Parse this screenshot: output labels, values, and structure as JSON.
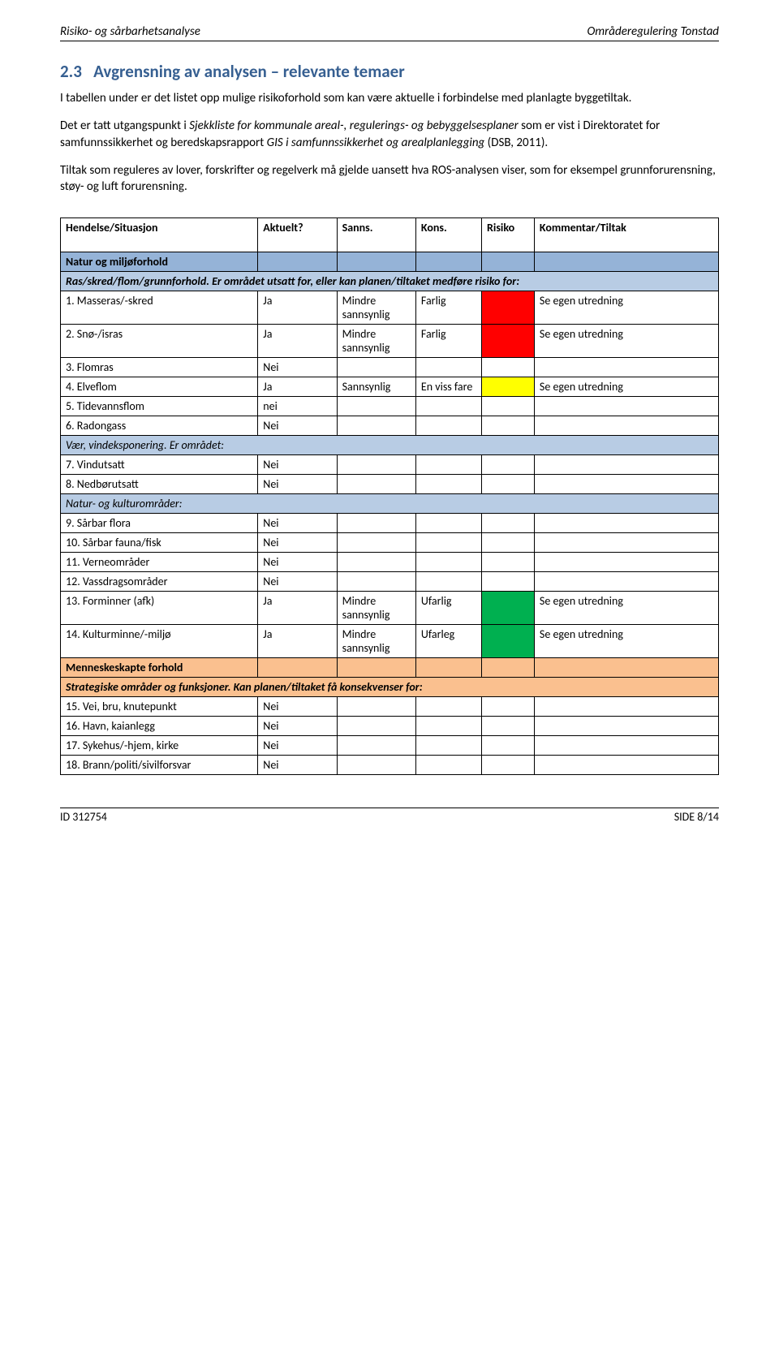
{
  "header": {
    "left": "Risiko- og sårbarhetsanalyse",
    "right": "Områderegulering Tonstad"
  },
  "section": {
    "number": "2.3",
    "title": "Avgrensning av analysen – relevante temaer"
  },
  "paragraphs": {
    "p1": "I tabellen under er det listet opp mulige risikoforhold som kan være aktuelle i forbindelse med planlagte byggetiltak.",
    "p2a": "Det er tatt utgangspunkt i ",
    "p2b": "Sjekkliste for kommunale areal-, regulerings- og bebyggelsesplaner",
    "p2c": " som er vist i Direktoratet for samfunnssikkerhet og beredskapsrapport ",
    "p2d": "GIS i samfunnssikkerhet og arealplanlegging",
    "p2e": " (DSB, 2011).",
    "p3": "Tiltak som reguleres av lover, forskrifter og regelverk må gjelde uansett hva ROS-analysen viser, som for eksempel grunnforurensning, støy- og luft forurensning."
  },
  "columns": {
    "c1": "Hendelse/Situasjon",
    "c2": "Aktuelt?",
    "c3": "Sanns.",
    "c4": "Kons.",
    "c5": "Risiko",
    "c6": "Kommentar/Tiltak"
  },
  "section_headers": {
    "natur": "Natur og miljøforhold",
    "ras": "Ras/skred/flom/grunnforhold. Er området utsatt for, eller kan planen/tiltaket medføre risiko for:",
    "vaer": "Vær, vindeksponering. Er området:",
    "naturkultur": "Natur- og kulturområder:",
    "menneske": "Menneskeskapte forhold",
    "strategiske": "Strategiske områder og funksjoner. Kan planen/tiltaket få konsekvenser for:"
  },
  "rows": {
    "r1": {
      "label": "1. Masseras/-skred",
      "akt": "Ja",
      "sanns": "Mindre sannsynlig",
      "kons": "Farlig",
      "risk": "red",
      "kom": "Se egen utredning"
    },
    "r2": {
      "label": "2. Snø-/isras",
      "akt": "Ja",
      "sanns": "Mindre sannsynlig",
      "kons": "Farlig",
      "risk": "red",
      "kom": "Se egen utredning"
    },
    "r3": {
      "label": "3. Flomras",
      "akt": "Nei",
      "sanns": "",
      "kons": "",
      "risk": "",
      "kom": ""
    },
    "r4": {
      "label": "4. Elveflom",
      "akt": "Ja",
      "sanns": "Sannsynlig",
      "kons": "En viss fare",
      "risk": "yellow",
      "kom": "Se egen utredning"
    },
    "r5": {
      "label": "5. Tidevannsflom",
      "akt": "nei",
      "sanns": "",
      "kons": "",
      "risk": "",
      "kom": ""
    },
    "r6": {
      "label": "6. Radongass",
      "akt": "Nei",
      "sanns": "",
      "kons": "",
      "risk": "",
      "kom": ""
    },
    "r7": {
      "label": "7. Vindutsatt",
      "akt": "Nei",
      "sanns": "",
      "kons": "",
      "risk": "",
      "kom": ""
    },
    "r8": {
      "label": "8. Nedbørutsatt",
      "akt": "Nei",
      "sanns": "",
      "kons": "",
      "risk": "",
      "kom": ""
    },
    "r9": {
      "label": "9. Sårbar flora",
      "akt": "Nei",
      "sanns": "",
      "kons": "",
      "risk": "",
      "kom": ""
    },
    "r10": {
      "label": "10. Sårbar fauna/fisk",
      "akt": "Nei",
      "sanns": "",
      "kons": "",
      "risk": "",
      "kom": ""
    },
    "r11": {
      "label": "11. Verneområder",
      "akt": "Nei",
      "sanns": "",
      "kons": "",
      "risk": "",
      "kom": ""
    },
    "r12": {
      "label": "12. Vassdragsområder",
      "akt": "Nei",
      "sanns": "",
      "kons": "",
      "risk": "",
      "kom": ""
    },
    "r13": {
      "label": "13. Forminner (afk)",
      "akt": "Ja",
      "sanns": "Mindre sannsynlig",
      "kons": "Ufarlig",
      "risk": "green",
      "kom": "Se egen utredning"
    },
    "r14": {
      "label": "14. Kulturminne/-miljø",
      "akt": "Ja",
      "sanns": "Mindre sannsynlig",
      "kons": "Ufarleg",
      "risk": "green",
      "kom": "Se egen utredning"
    },
    "r15": {
      "label": "15. Vei, bru, knutepunkt",
      "akt": "Nei",
      "sanns": "",
      "kons": "",
      "risk": "",
      "kom": ""
    },
    "r16": {
      "label": "16. Havn, kaianlegg",
      "akt": "Nei",
      "sanns": "",
      "kons": "",
      "risk": "",
      "kom": ""
    },
    "r17": {
      "label": "17. Sykehus/-hjem, kirke",
      "akt": "Nei",
      "sanns": "",
      "kons": "",
      "risk": "",
      "kom": ""
    },
    "r18": {
      "label": "18. Brann/politi/sivilforsvar",
      "akt": "Nei",
      "sanns": "",
      "kons": "",
      "risk": "",
      "kom": ""
    }
  },
  "footer": {
    "left": "ID 312754",
    "right": "SIDE 8/14"
  },
  "colors": {
    "heading": "#365f91",
    "blue": "#95b3d7",
    "lightblue": "#b8cce4",
    "orange": "#fac08f",
    "red": "#ff0000",
    "yellow": "#ffff00",
    "green": "#00b050"
  }
}
